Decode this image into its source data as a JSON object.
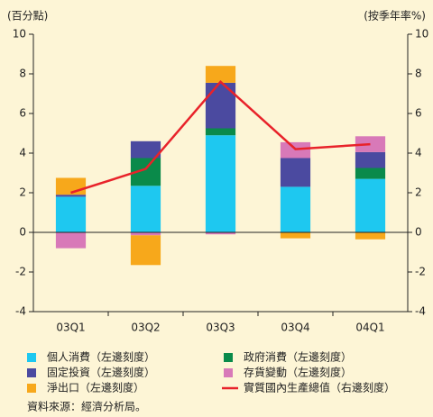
{
  "chart_data": {
    "type": "bar",
    "stacked": true,
    "y_label": "(百分點)",
    "y2_label": "(按季年率%)",
    "categories": [
      "03Q1",
      "03Q2",
      "03Q3",
      "03Q4",
      "04Q1"
    ],
    "series": [
      {
        "name": "個人消費（左邊刻度）",
        "color": "#1ec8f0",
        "values": [
          1.8,
          2.35,
          4.9,
          2.3,
          2.7
        ]
      },
      {
        "name": "政府消費（左邊刻度）",
        "color": "#0a8a4a",
        "values": [
          0,
          1.4,
          0.35,
          0,
          0.55
        ]
      },
      {
        "name": "固定投資（左邊刻度）",
        "color": "#4b4aa0",
        "values": [
          0.1,
          0.85,
          2.3,
          1.45,
          0.8
        ]
      },
      {
        "name": "存貨變動（左邊刻度）",
        "color": "#d879b8",
        "values": [
          -0.8,
          -0.15,
          -0.1,
          0.8,
          0.8
        ]
      },
      {
        "name": "淨出口（左邊刻度）",
        "color": "#f7a81b",
        "values": [
          0.85,
          -1.5,
          0.85,
          -0.3,
          -0.35
        ]
      },
      {
        "name": "實質國內生產總值（右邊刻度）",
        "color": "#e8222a",
        "type": "line",
        "axis": "y2",
        "values": [
          2.0,
          3.2,
          7.6,
          4.2,
          4.45
        ]
      }
    ],
    "ylim": [
      -4,
      10
    ],
    "yticks": [
      -4,
      -2,
      0,
      2,
      4,
      6,
      8,
      10
    ],
    "y2lim": [
      -4,
      10
    ],
    "y2ticks": [
      -4,
      -2,
      0,
      2,
      4,
      6,
      8,
      10
    ],
    "source": "資料來源：經濟分析局。"
  }
}
